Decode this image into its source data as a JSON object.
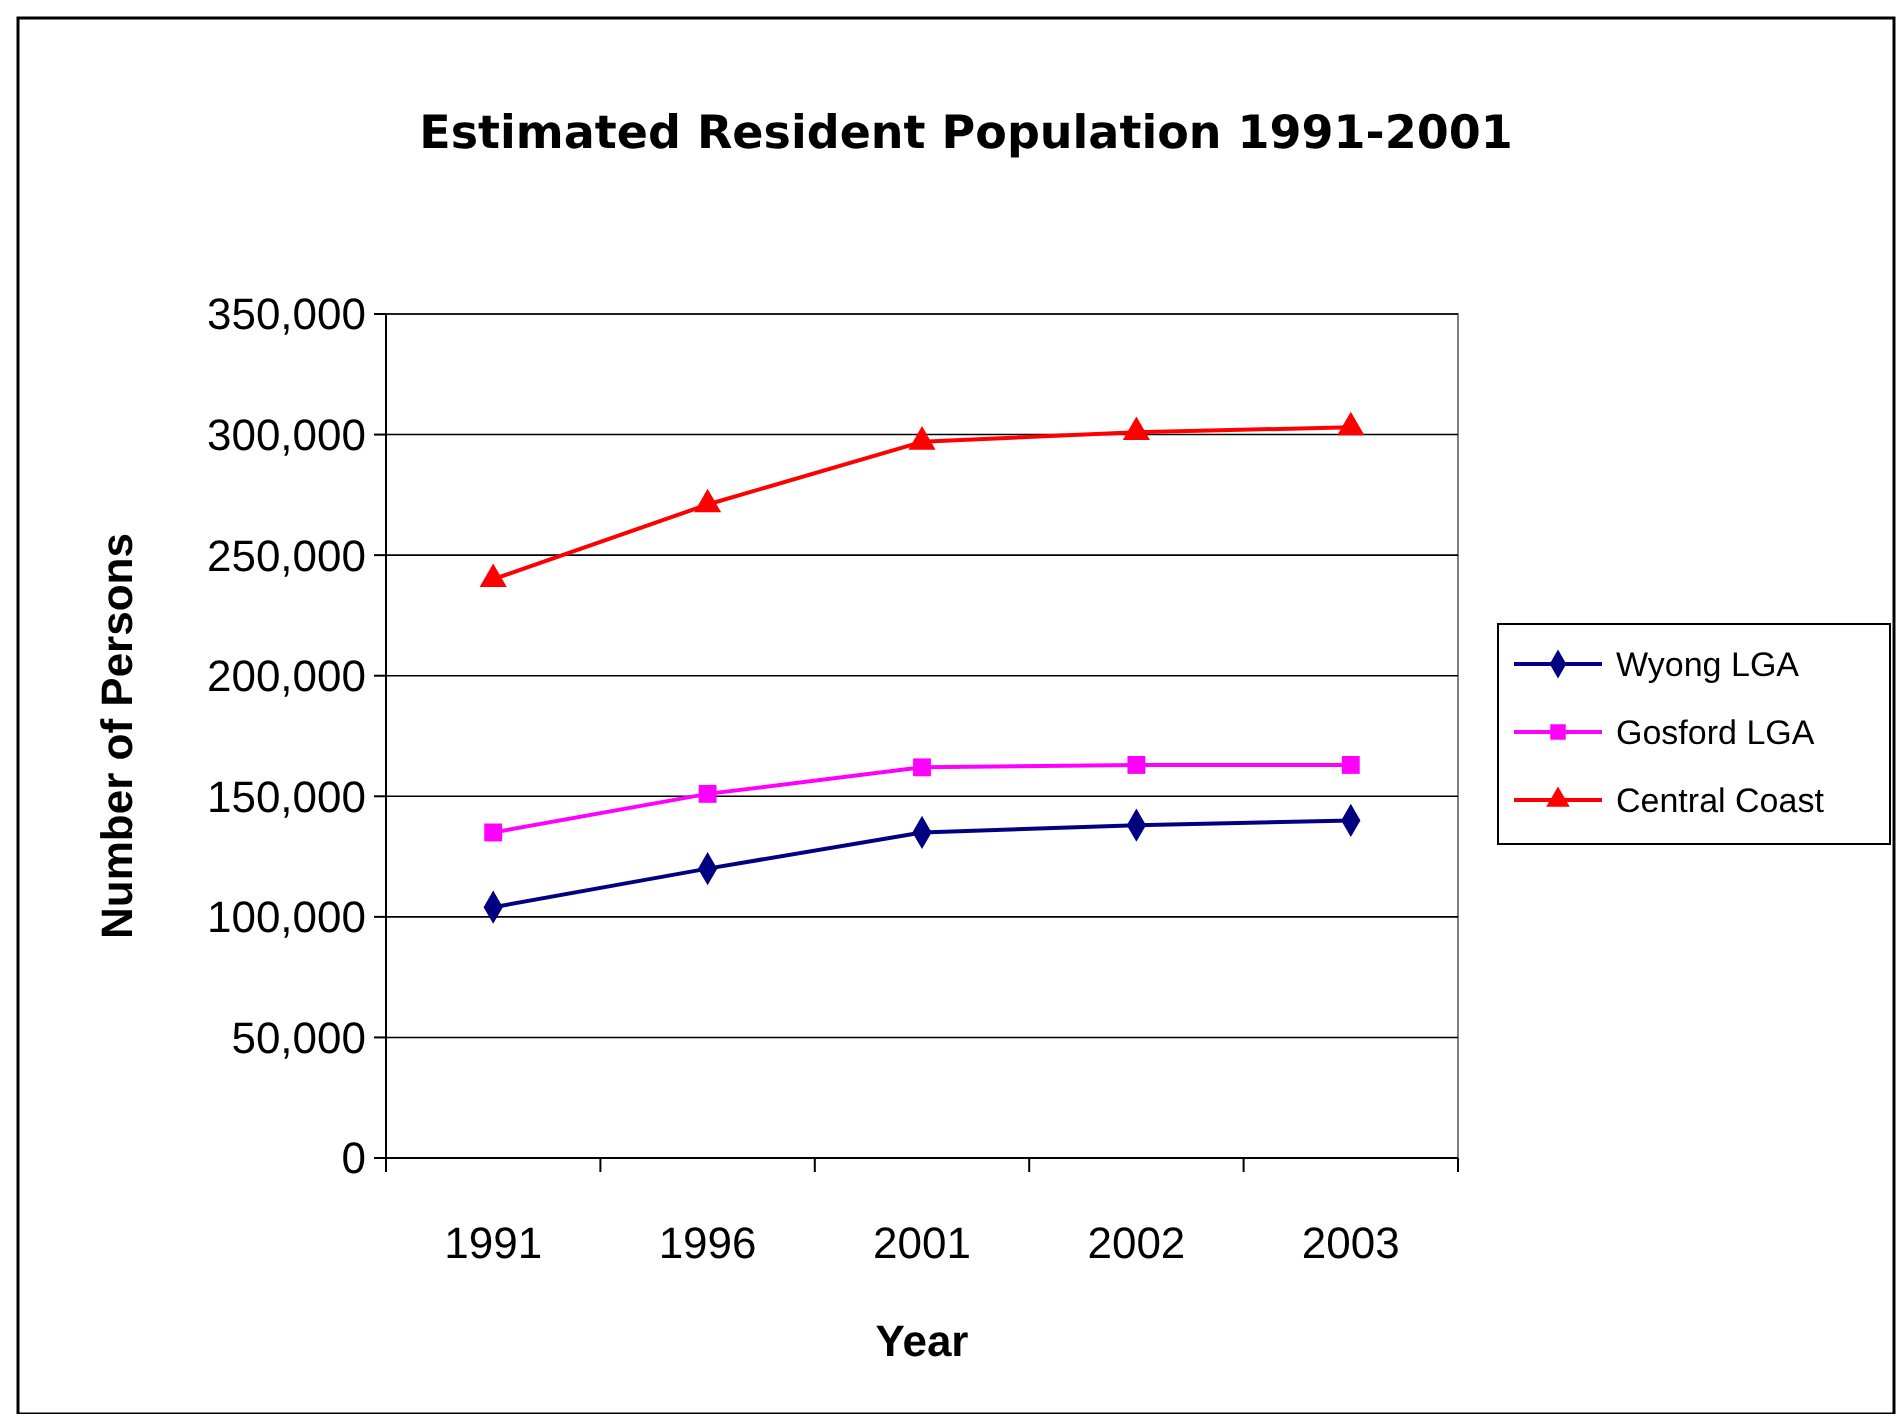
{
  "chart_data": {
    "type": "line",
    "title": "Estimated Resident Population 1991-2001",
    "xlabel": "Year",
    "ylabel": "Number of Persons",
    "categories": [
      "1991",
      "1996",
      "2001",
      "2002",
      "2003"
    ],
    "series": [
      {
        "name": "Wyong LGA",
        "color": "#000080",
        "marker": "diamond",
        "values": [
          104000,
          120000,
          135000,
          138000,
          140000
        ]
      },
      {
        "name": "Gosford LGA",
        "color": "#ff00ff",
        "marker": "square",
        "values": [
          135000,
          151000,
          162000,
          163000,
          163000
        ]
      },
      {
        "name": "Central Coast",
        "color": "#ff0000",
        "marker": "triangle",
        "values": [
          240000,
          271000,
          297000,
          301000,
          303000
        ]
      }
    ],
    "ylim": [
      0,
      350000
    ],
    "yticks": [
      {
        "value": 0,
        "label": "0"
      },
      {
        "value": 50000,
        "label": "50,000"
      },
      {
        "value": 100000,
        "label": "100,000"
      },
      {
        "value": 150000,
        "label": "150,000"
      },
      {
        "value": 200000,
        "label": "200,000"
      },
      {
        "value": 250000,
        "label": "250,000"
      },
      {
        "value": 300000,
        "label": "300,000"
      },
      {
        "value": 350000,
        "label": "350,000"
      }
    ],
    "grid": "y",
    "legend": "right",
    "line_style": "solid"
  }
}
